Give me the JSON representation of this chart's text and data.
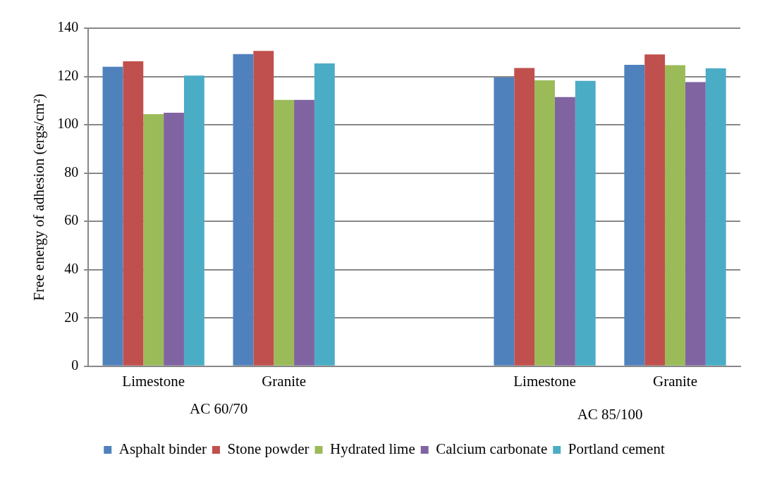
{
  "chart_data": {
    "type": "bar",
    "ylabel": "Free energy of adhesion (ergs/cm²)",
    "categories": [
      "Limestone",
      "Granite",
      null,
      "Limestone",
      "Granite"
    ],
    "series": [
      {
        "name": "Asphalt binder",
        "color": "#4f81bd",
        "values": [
          124,
          129.3,
          null,
          119.6,
          124.8
        ]
      },
      {
        "name": "Stone powder",
        "color": "#c0504d",
        "values": [
          126.3,
          130.6,
          null,
          123.5,
          129.1
        ]
      },
      {
        "name": "Hydrated lime",
        "color": "#9bbb59",
        "values": [
          104.4,
          110.3,
          null,
          118.4,
          124.7
        ]
      },
      {
        "name": "Calcium carbonate",
        "color": "#8064a2",
        "values": [
          105,
          110.3,
          null,
          111.5,
          117.7
        ]
      },
      {
        "name": "Portland cement",
        "color": "#4bacc6",
        "values": [
          120.4,
          125.4,
          null,
          118.2,
          123.4
        ]
      }
    ],
    "annotations": [
      "AC 60/70",
      "AC 85/100"
    ],
    "ylim": [
      0,
      140
    ],
    "yticks": [
      0,
      20,
      40,
      60,
      80,
      100,
      120,
      140
    ],
    "grid": "y",
    "legend": "bottom"
  }
}
